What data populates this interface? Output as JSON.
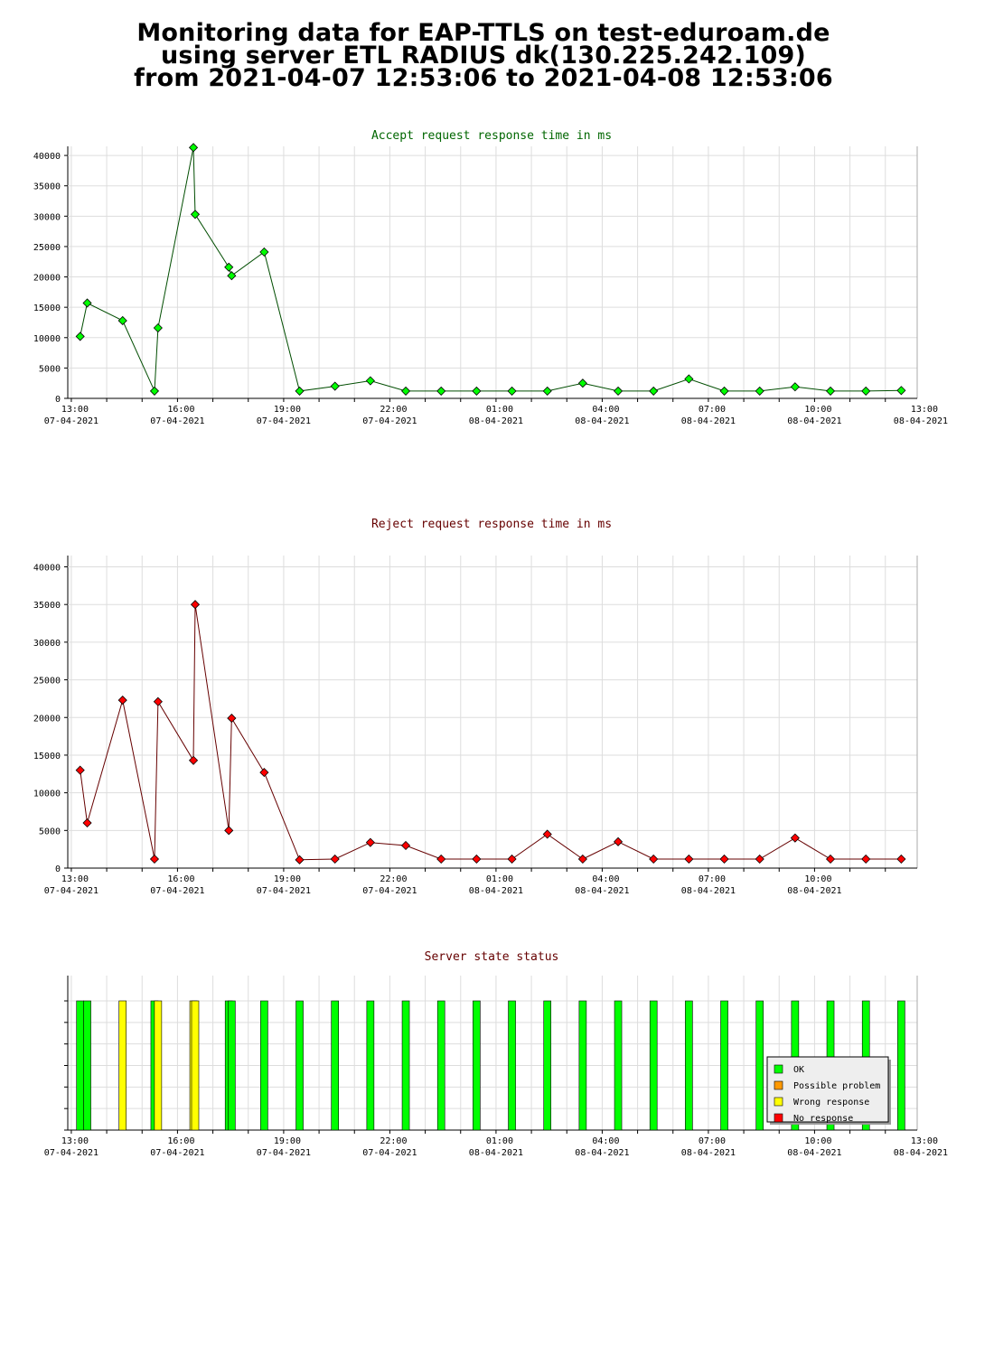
{
  "header": {
    "line1": "Monitoring data for EAP-TTLS on test-eduroam.de",
    "line2": "using server ETL RADIUS dk(130.225.242.109)",
    "line3": "from 2021-04-07  12:53:06 to 2021-04-08  12:53:06"
  },
  "colors": {
    "ok": "#00ff00",
    "possible_problem": "#ff9900",
    "wrong_response": "#ffff00",
    "no_response": "#ff0000",
    "accept_line": "#006600",
    "reject_line": "#660000",
    "grid": "#dddddd"
  },
  "chart_data": [
    {
      "id": "accept",
      "type": "line",
      "title": "Accept request response time in ms",
      "title_color": "#006600",
      "line_color": "#004d00",
      "marker_color": "#00ff00",
      "xlim": [
        12.9,
        36.9
      ],
      "ylim": [
        0,
        41500
      ],
      "yticks": [
        0,
        5000,
        10000,
        15000,
        20000,
        25000,
        30000,
        35000,
        40000
      ],
      "xticks": [
        {
          "time": "13:00",
          "date": "07-04-2021"
        },
        {
          "time": "16:00",
          "date": "07-04-2021"
        },
        {
          "time": "19:00",
          "date": "07-04-2021"
        },
        {
          "time": "22:00",
          "date": "07-04-2021"
        },
        {
          "time": "01:00",
          "date": "08-04-2021"
        },
        {
          "time": "04:00",
          "date": "08-04-2021"
        },
        {
          "time": "07:00",
          "date": "08-04-2021"
        },
        {
          "time": "10:00",
          "date": "08-04-2021"
        },
        {
          "time": "13:00",
          "date": "08-04-2021"
        }
      ],
      "x": [
        13.25,
        13.45,
        14.45,
        15.35,
        15.45,
        16.45,
        16.5,
        17.45,
        17.53,
        18.45,
        19.45,
        20.45,
        21.45,
        22.45,
        23.45,
        24.45,
        25.45,
        26.45,
        27.45,
        28.45,
        29.45,
        30.45,
        31.45,
        32.45,
        33.45,
        34.45,
        35.45,
        36.45
      ],
      "y": [
        10200,
        15700,
        12800,
        1200,
        11600,
        41300,
        30300,
        21600,
        20200,
        24100,
        1200,
        2000,
        2900,
        1200,
        1200,
        1200,
        1200,
        1200,
        2500,
        1200,
        1200,
        3200,
        1200,
        1200,
        1900,
        1200,
        1200,
        1300
      ]
    },
    {
      "id": "reject",
      "type": "line",
      "title": "Reject request response time in ms",
      "title_color": "#660000",
      "line_color": "#660000",
      "marker_color": "#ff0000",
      "xlim": [
        12.9,
        36.9
      ],
      "ylim": [
        0,
        41500
      ],
      "yticks": [
        0,
        5000,
        10000,
        15000,
        20000,
        25000,
        30000,
        35000,
        40000
      ],
      "xticks": [
        {
          "time": "13:00",
          "date": "07-04-2021"
        },
        {
          "time": "16:00",
          "date": "07-04-2021"
        },
        {
          "time": "19:00",
          "date": "07-04-2021"
        },
        {
          "time": "22:00",
          "date": "07-04-2021"
        },
        {
          "time": "01:00",
          "date": "08-04-2021"
        },
        {
          "time": "04:00",
          "date": "08-04-2021"
        },
        {
          "time": "07:00",
          "date": "08-04-2021"
        },
        {
          "time": "10:00",
          "date": "08-04-2021"
        }
      ],
      "x": [
        13.25,
        13.45,
        14.45,
        15.35,
        15.45,
        16.45,
        16.5,
        17.45,
        17.53,
        18.45,
        19.45,
        20.45,
        21.45,
        22.45,
        23.45,
        24.45,
        25.45,
        26.45,
        27.45,
        28.45,
        29.45,
        30.45,
        31.45,
        32.45,
        33.45,
        34.45,
        35.45,
        36.45
      ],
      "y": [
        13000,
        6000,
        22300,
        1200,
        22100,
        14300,
        35000,
        5000,
        19900,
        12700,
        1100,
        1200,
        3400,
        3000,
        1200,
        1200,
        1200,
        4500,
        1200,
        3500,
        1200,
        1200,
        1200,
        1200,
        4000,
        1200,
        1200,
        1200
      ]
    },
    {
      "id": "status",
      "type": "bar",
      "title": "Server state status",
      "title_color": "#660000",
      "xlim": [
        12.9,
        36.9
      ],
      "xticks": [
        {
          "time": "13:00",
          "date": "07-04-2021"
        },
        {
          "time": "16:00",
          "date": "07-04-2021"
        },
        {
          "time": "19:00",
          "date": "07-04-2021"
        },
        {
          "time": "22:00",
          "date": "07-04-2021"
        },
        {
          "time": "01:00",
          "date": "08-04-2021"
        },
        {
          "time": "04:00",
          "date": "08-04-2021"
        },
        {
          "time": "07:00",
          "date": "08-04-2021"
        },
        {
          "time": "10:00",
          "date": "08-04-2021"
        },
        {
          "time": "13:00",
          "date": "08-04-2021"
        }
      ],
      "x": [
        13.25,
        13.45,
        14.45,
        15.35,
        15.45,
        16.45,
        16.5,
        17.45,
        17.53,
        18.45,
        19.45,
        20.45,
        21.45,
        22.45,
        23.45,
        24.45,
        25.45,
        26.45,
        27.45,
        28.45,
        29.45,
        30.45,
        31.45,
        32.45,
        33.45,
        34.45,
        35.45,
        36.45
      ],
      "state": [
        "ok",
        "ok",
        "wrong_response",
        "ok",
        "wrong_response",
        "wrong_response",
        "wrong_response",
        "ok",
        "ok",
        "ok",
        "ok",
        "ok",
        "ok",
        "ok",
        "ok",
        "ok",
        "ok",
        "ok",
        "ok",
        "ok",
        "ok",
        "ok",
        "ok",
        "ok",
        "ok",
        "ok",
        "ok",
        "ok"
      ],
      "legend_position": "bottom-right",
      "legend": [
        {
          "key": "ok",
          "label": "OK"
        },
        {
          "key": "possible_problem",
          "label": "Possible problem"
        },
        {
          "key": "wrong_response",
          "label": "Wrong response"
        },
        {
          "key": "no_response",
          "label": "No response"
        }
      ]
    }
  ]
}
